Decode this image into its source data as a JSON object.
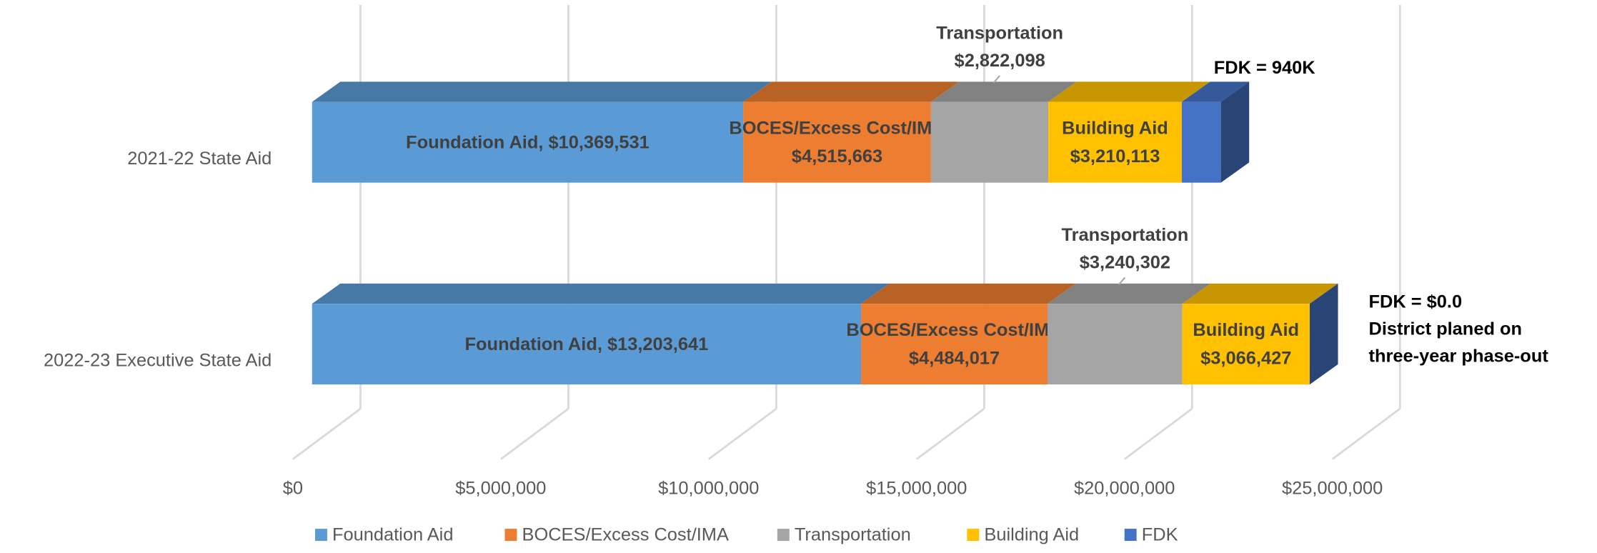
{
  "chart_data": {
    "type": "bar3d_stacked_horizontal",
    "categories": [
      "2021-22 State Aid",
      "2022-23 Executive State Aid"
    ],
    "series": [
      {
        "name": "Foundation Aid",
        "color": "#5b9bd5",
        "values": [
          10369531,
          13203641
        ],
        "value_labels": [
          "Foundation Aid, $10,369,531",
          "Foundation Aid, $13,203,641"
        ]
      },
      {
        "name": "BOCES/Excess Cost/IMA",
        "color": "#ed7d31",
        "values": [
          4515663,
          4484017
        ],
        "value_labels": [
          [
            "BOCES/Excess Cost/IMA",
            "$4,515,663"
          ],
          [
            "BOCES/Excess Cost/IMA",
            "$4,484,017"
          ]
        ]
      },
      {
        "name": "Transportation",
        "color": "#a5a5a5",
        "values": [
          2822098,
          3240302
        ],
        "value_labels": [
          [
            "Transportation",
            "$2,822,098"
          ],
          [
            "Transportation",
            "$3,240,302"
          ]
        ]
      },
      {
        "name": "Building Aid",
        "color": "#ffc000",
        "values": [
          3210113,
          3066427
        ],
        "value_labels": [
          [
            "Building Aid",
            "$3,210,113"
          ],
          [
            "Building Aid",
            "$3,066,427"
          ]
        ]
      },
      {
        "name": "FDK",
        "color": "#4472c4",
        "values": [
          940000,
          0
        ],
        "value_labels": [
          "FDK = 940K",
          "FDK = $0.0"
        ]
      }
    ],
    "annotation": [
      "District planed on",
      "three-year phase-out"
    ],
    "xlim": [
      0,
      25000000
    ],
    "xticks": [
      {
        "value": 0,
        "label": "$0"
      },
      {
        "value": 5000000,
        "label": "$5,000,000"
      },
      {
        "value": 10000000,
        "label": "$10,000,000"
      },
      {
        "value": 15000000,
        "label": "$15,000,000"
      },
      {
        "value": 20000000,
        "label": "$20,000,000"
      },
      {
        "value": 25000000,
        "label": "$25,000,000"
      }
    ],
    "grid": true,
    "legend": "bottom"
  }
}
